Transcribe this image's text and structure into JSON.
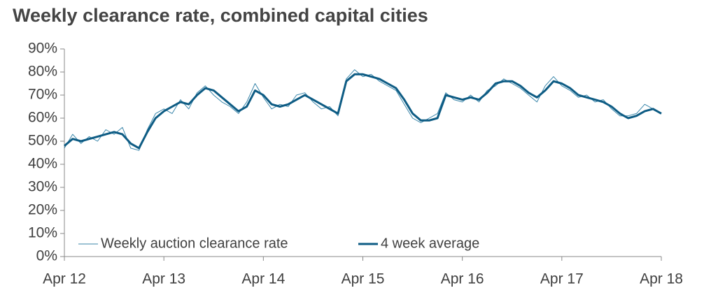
{
  "chart_data": {
    "type": "line",
    "title": "Weekly clearance rate, combined capital cities",
    "categories": [
      "Apr 12",
      null,
      null,
      null,
      null,
      null,
      null,
      null,
      null,
      null,
      null,
      null,
      "Apr 13",
      null,
      null,
      null,
      null,
      null,
      null,
      null,
      null,
      null,
      null,
      null,
      "Apr 14",
      null,
      null,
      null,
      null,
      null,
      null,
      null,
      null,
      null,
      null,
      null,
      "Apr 15",
      null,
      null,
      null,
      null,
      null,
      null,
      null,
      null,
      null,
      null,
      null,
      "Apr 16",
      null,
      null,
      null,
      null,
      null,
      null,
      null,
      null,
      null,
      null,
      null,
      "Apr 17",
      null,
      null,
      null,
      null,
      null,
      null,
      null,
      null,
      null,
      null,
      null,
      "Apr 18"
    ],
    "series": [
      {
        "name": "Weekly auction clearance rate",
        "color": "#3a86aa",
        "width": 1,
        "values": [
          47,
          53,
          49,
          52,
          50,
          55,
          53,
          56,
          47,
          46,
          55,
          62,
          64,
          62,
          68,
          64,
          71,
          74,
          70,
          67,
          65,
          62,
          67,
          75,
          69,
          64,
          66,
          65,
          70,
          71,
          67,
          64,
          65,
          61,
          77,
          81,
          78,
          79,
          76,
          74,
          72,
          66,
          60,
          58,
          60,
          62,
          71,
          68,
          67,
          70,
          67,
          72,
          74,
          77,
          75,
          73,
          70,
          67,
          74,
          78,
          74,
          72,
          69,
          70,
          67,
          68,
          64,
          61,
          61,
          62,
          66,
          64,
          62
        ]
      },
      {
        "name": "4 week average",
        "color": "#0e5c84",
        "width": 3,
        "values": [
          48,
          51,
          50,
          51,
          52,
          53,
          54,
          53,
          49,
          47,
          54,
          60,
          63,
          65,
          67,
          66,
          70,
          73,
          72,
          69,
          66,
          63,
          65,
          72,
          70,
          66,
          65,
          66,
          68,
          70,
          68,
          66,
          64,
          62,
          76,
          79,
          79,
          78,
          77,
          75,
          73,
          68,
          62,
          59,
          59,
          60,
          70,
          69,
          68,
          69,
          68,
          71,
          75,
          76,
          76,
          74,
          71,
          69,
          72,
          76,
          75,
          73,
          70,
          69,
          68,
          67,
          65,
          62,
          60,
          61,
          63,
          64,
          62
        ]
      }
    ],
    "ylim": [
      0,
      90
    ],
    "yticks": [
      {
        "value": 0,
        "label": "0%"
      },
      {
        "value": 10,
        "label": "10%"
      },
      {
        "value": 20,
        "label": "20%"
      },
      {
        "value": 30,
        "label": "30%"
      },
      {
        "value": 40,
        "label": "40%"
      },
      {
        "value": 50,
        "label": "50%"
      },
      {
        "value": 60,
        "label": "60%"
      },
      {
        "value": 70,
        "label": "70%"
      },
      {
        "value": 80,
        "label": "80%"
      },
      {
        "value": 90,
        "label": "90%"
      }
    ],
    "legend": "lower left"
  }
}
